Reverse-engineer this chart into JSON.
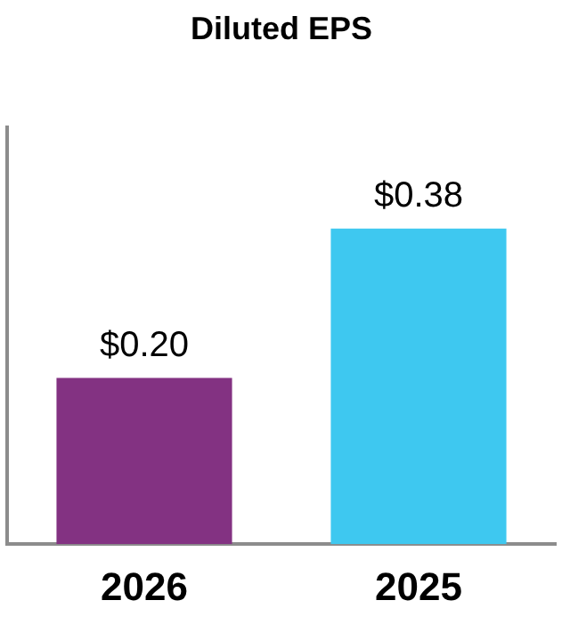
{
  "chart_data": {
    "type": "bar",
    "title": "Diluted EPS",
    "categories": [
      "2026",
      "2025"
    ],
    "values": [
      0.2,
      0.38
    ],
    "colors": [
      "#833282",
      "#3ec8f0"
    ],
    "value_labels": [
      "$0.20",
      "$0.38"
    ],
    "grid": false,
    "legend": false
  }
}
